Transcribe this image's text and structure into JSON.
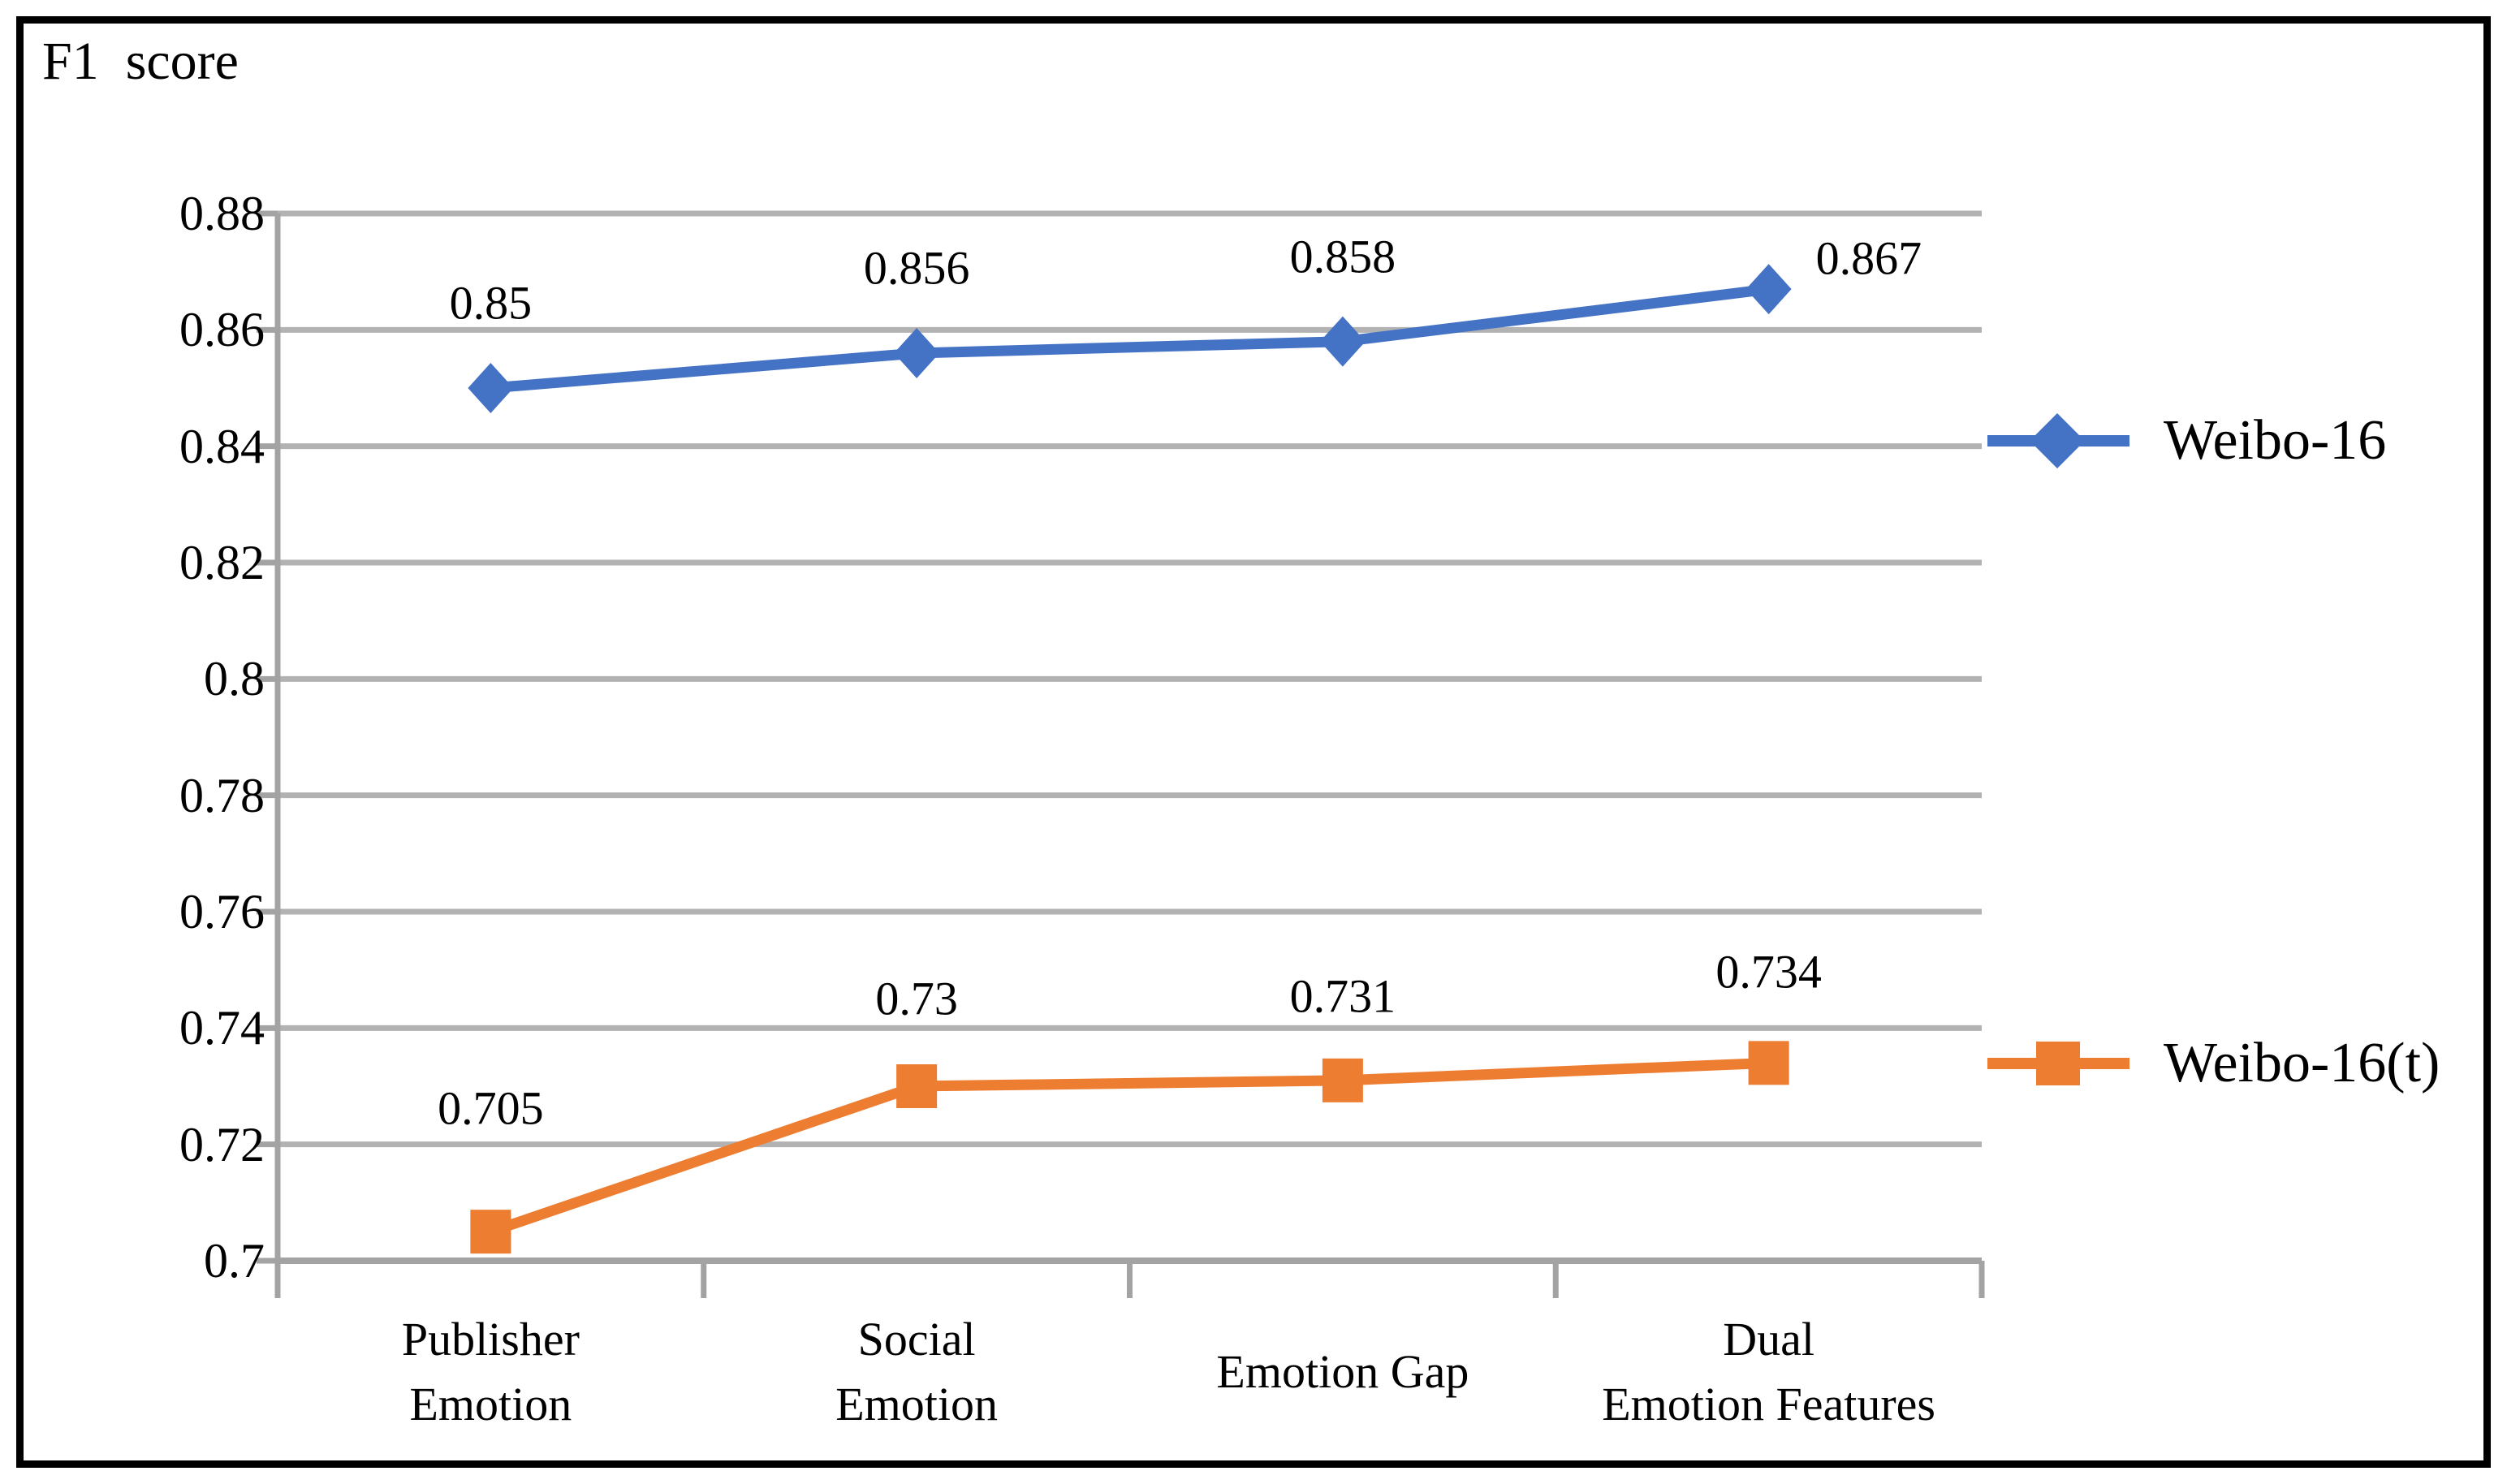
{
  "title": "F1  score",
  "colors": {
    "background": "#ffffff",
    "frame_border": "#000000",
    "gridline": "#b2b2b2",
    "axis": "#a3a3a3",
    "text": "#000000",
    "series_blue": "#4472c4",
    "series_orange": "#ed7d31"
  },
  "chart_data": {
    "type": "line",
    "title": "F1 score",
    "xlabel": "",
    "ylabel": "F1 score",
    "categories": [
      "Publisher Emotion",
      "Social Emotion",
      "Emotion Gap",
      "Dual Emotion Features"
    ],
    "category_lines": [
      [
        "Publisher",
        "Emotion"
      ],
      [
        "Social",
        "Emotion"
      ],
      [
        "Emotion Gap"
      ],
      [
        "Dual",
        "Emotion Features"
      ]
    ],
    "series": [
      {
        "name": "Weibo-16",
        "color": "#4472c4",
        "marker": "diamond",
        "values": [
          0.85,
          0.856,
          0.858,
          0.867
        ],
        "labels": [
          "0.85",
          "0.856",
          "0.858",
          "0.867"
        ]
      },
      {
        "name": "Weibo-16(t)",
        "color": "#ed7d31",
        "marker": "square",
        "values": [
          0.705,
          0.73,
          0.731,
          0.734
        ],
        "labels": [
          "0.705",
          "0.73",
          "0.731",
          "0.734"
        ]
      }
    ],
    "y_ticks": [
      "0.88",
      "0.86",
      "0.84",
      "0.82",
      "0.8",
      "0.78",
      "0.76",
      "0.74",
      "0.72",
      "0.7"
    ],
    "ylim": [
      0.7,
      0.88
    ],
    "grid": true,
    "legend_position": "right"
  }
}
